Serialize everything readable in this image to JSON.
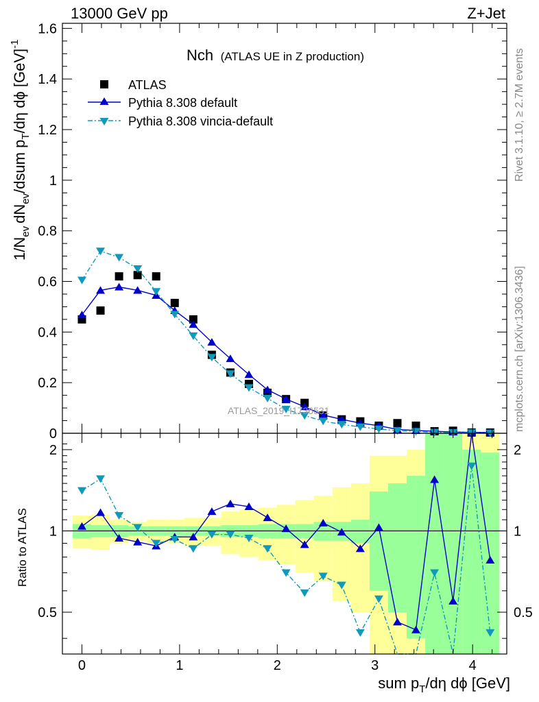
{
  "header": {
    "left": "13000 GeV pp",
    "right": "Z+Jet"
  },
  "plot_title": {
    "main": "Nch",
    "sub": "(ATLAS UE in Z production)"
  },
  "side_labels": {
    "rivet": "Rivet 3.1.10, ≥ 2.7M events",
    "mcplots": "mcplots.cern.ch [arXiv:1306.3436]"
  },
  "watermark": "ATLAS_2019_I1736531",
  "legend": [
    {
      "label": "ATLAS",
      "marker": "square",
      "color": "#000000"
    },
    {
      "label": "Pythia 8.308 default",
      "marker": "triangle-up",
      "color": "#0000cc"
    },
    {
      "label": "Pythia 8.308 vincia-default",
      "marker": "triangle-down",
      "color": "#1199bb"
    }
  ],
  "axes": {
    "top_ylabel_main": "1/N",
    "top_ylabel_rest": "dN",
    "top_ylabel_tail": "/dsum p",
    "top_ylabel_end": "/dη dϕ [GeV]",
    "top_ylabel_sub_ev": "ev",
    "top_ylabel_sub_T": "T",
    "top_ylabel_sup": "-1",
    "bottom_ylabel": "Ratio to ATLAS",
    "xlabel_pre": "sum p",
    "xlabel_sub": "T",
    "xlabel_post": "/dη dϕ [GeV]"
  },
  "colors": {
    "data": "#000000",
    "default": "#0000cc",
    "vincia": "#1199bb",
    "band_inner": "#99ff99",
    "band_outer": "#ffff99"
  },
  "chart_data": [
    {
      "type": "scatter",
      "panel": "main",
      "xlim": [
        -0.2,
        4.35
      ],
      "ylim": [
        0,
        1.62
      ],
      "x_ticks": [
        0,
        1,
        2,
        3,
        4
      ],
      "y_ticks": [
        0.2,
        0.4,
        0.6,
        0.8,
        1,
        1.2,
        1.4,
        1.6
      ],
      "y_tick_labels": [
        "0.2",
        "0.4",
        "0.6",
        "0.8",
        "1",
        "1.2",
        "1.4",
        "1.6"
      ],
      "x": [
        0.0,
        0.19,
        0.38,
        0.57,
        0.76,
        0.95,
        1.14,
        1.33,
        1.52,
        1.71,
        1.9,
        2.09,
        2.28,
        2.47,
        2.66,
        2.85,
        3.04,
        3.23,
        3.42,
        3.61,
        3.8,
        3.99,
        4.18
      ],
      "series": [
        {
          "name": "ATLAS",
          "style": "markers",
          "values": [
            0.45,
            0.485,
            0.62,
            0.625,
            0.62,
            0.515,
            0.45,
            0.31,
            0.24,
            0.195,
            0.16,
            0.135,
            0.12,
            0.07,
            0.055,
            0.047,
            0.03,
            0.04,
            0.03,
            0.008,
            0.01,
            0.003,
            0.003
          ]
        },
        {
          "name": "Pythia 8.308 default",
          "style": "solid",
          "values": [
            0.468,
            0.565,
            0.578,
            0.565,
            0.545,
            0.485,
            0.43,
            0.36,
            0.295,
            0.232,
            0.172,
            0.135,
            0.105,
            0.072,
            0.055,
            0.04,
            0.03,
            0.015,
            0.011,
            0.008,
            0.005,
            0.004,
            0.003
          ]
        },
        {
          "name": "Pythia 8.308 vincia-default",
          "style": "dashdot",
          "values": [
            0.605,
            0.72,
            0.695,
            0.65,
            0.56,
            0.47,
            0.385,
            0.3,
            0.235,
            0.18,
            0.138,
            0.095,
            0.07,
            0.048,
            0.035,
            0.025,
            0.017,
            0.01,
            0.007,
            0.004,
            0.003,
            0.002,
            0.001
          ]
        }
      ]
    },
    {
      "type": "line",
      "panel": "ratio",
      "xlim": [
        -0.2,
        4.35
      ],
      "ylim": [
        0.35,
        2.3
      ],
      "x_ticks": [
        0,
        1,
        2,
        3,
        4
      ],
      "x_tick_labels": [
        "0",
        "1",
        "2",
        "3",
        "4"
      ],
      "y_ticks": [
        0.5,
        1,
        2
      ],
      "y_tick_labels": [
        "0.5",
        "1",
        "2"
      ],
      "reference": 1,
      "x": [
        0.0,
        0.19,
        0.38,
        0.57,
        0.76,
        0.95,
        1.14,
        1.33,
        1.52,
        1.71,
        1.9,
        2.09,
        2.28,
        2.47,
        2.66,
        2.85,
        3.04,
        3.23,
        3.42,
        3.61,
        3.8,
        3.99,
        4.18
      ],
      "bin_width": 0.19,
      "bands": {
        "inner": [
          0.06,
          0.05,
          0.05,
          0.04,
          0.04,
          0.04,
          0.04,
          0.04,
          0.05,
          0.05,
          0.06,
          0.06,
          0.06,
          0.08,
          0.08,
          0.1,
          0.4,
          0.5,
          0.6,
          1.5,
          1.5,
          1.0,
          0.95
        ],
        "outer": [
          0.14,
          0.15,
          0.1,
          0.08,
          0.1,
          0.1,
          0.12,
          0.12,
          0.18,
          0.2,
          0.22,
          0.25,
          0.3,
          0.35,
          0.45,
          0.5,
          0.9,
          0.9,
          1.0,
          1.5,
          1.5,
          1.5,
          1.5
        ]
      },
      "series": [
        {
          "name": "Pythia 8.308 default",
          "style": "solid",
          "values": [
            1.04,
            1.17,
            0.94,
            0.91,
            0.88,
            0.95,
            0.95,
            1.18,
            1.26,
            1.23,
            1.12,
            1.02,
            0.89,
            1.07,
            0.99,
            0.86,
            1.03,
            0.46,
            0.43,
            1.55,
            0.55,
            2.35,
            0.78
          ]
        },
        {
          "name": "Pythia 8.308 vincia-default",
          "style": "dashdot",
          "values": [
            1.41,
            1.56,
            1.14,
            1.03,
            0.9,
            0.93,
            0.86,
            0.97,
            0.97,
            0.94,
            0.86,
            0.7,
            0.59,
            0.68,
            0.63,
            0.42,
            0.56,
            0.3,
            0.25,
            0.7,
            0.3,
            1.74,
            0.42
          ]
        }
      ]
    }
  ]
}
